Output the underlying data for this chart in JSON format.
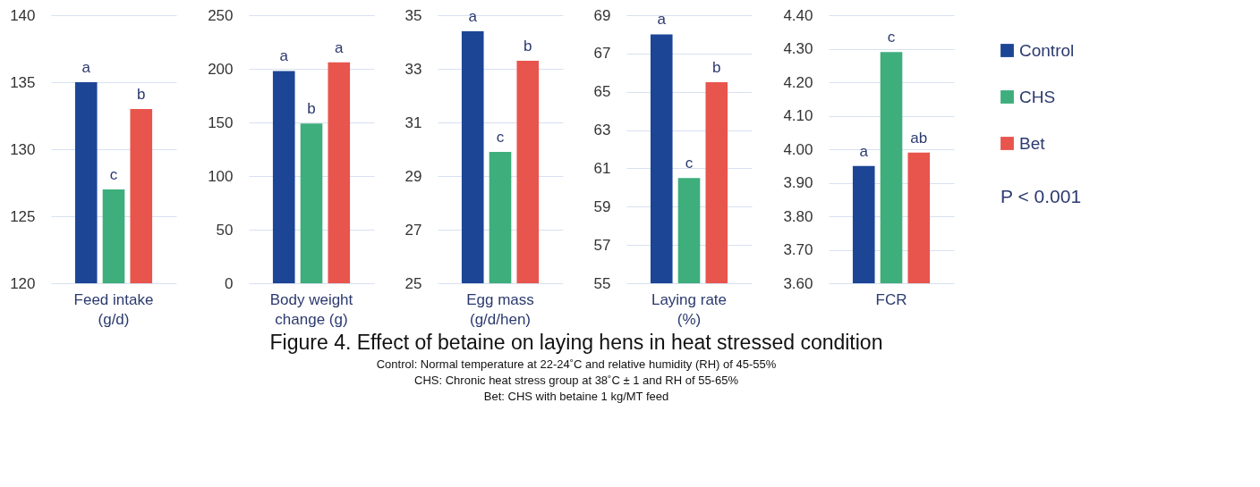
{
  "chart_data": [
    {
      "type": "bar",
      "categories": [
        "Feed intake\n(g/d)"
      ],
      "ylim": [
        120,
        140
      ],
      "yticks": [
        120,
        125,
        130,
        135,
        140
      ],
      "grid": "y",
      "legend": false,
      "series": [
        {
          "color": "#1c4596",
          "values": [
            135
          ],
          "value_labels": [
            "a"
          ]
        },
        {
          "color": "#3dae7c",
          "values": [
            127
          ],
          "value_labels": [
            "c"
          ]
        },
        {
          "color": "#e8554d",
          "values": [
            133
          ],
          "value_labels": [
            "b"
          ]
        }
      ]
    },
    {
      "type": "bar",
      "categories": [
        "Body weight\nchange (g)"
      ],
      "ylim": [
        0,
        250
      ],
      "yticks": [
        0,
        50,
        100,
        150,
        200,
        250
      ],
      "grid": "y",
      "legend": false,
      "series": [
        {
          "color": "#1c4596",
          "values": [
            198
          ],
          "value_labels": [
            "a"
          ]
        },
        {
          "color": "#3dae7c",
          "values": [
            149
          ],
          "value_labels": [
            "b"
          ]
        },
        {
          "color": "#e8554d",
          "values": [
            206
          ],
          "value_labels": [
            "a"
          ]
        }
      ]
    },
    {
      "type": "bar",
      "categories": [
        "Egg mass\n(g/d/hen)"
      ],
      "ylim": [
        25,
        35
      ],
      "yticks": [
        25,
        27,
        29,
        31,
        33,
        35
      ],
      "grid": "y",
      "legend": false,
      "series": [
        {
          "color": "#1c4596",
          "values": [
            34.4
          ],
          "value_labels": [
            "a"
          ]
        },
        {
          "color": "#3dae7c",
          "values": [
            29.9
          ],
          "value_labels": [
            "c"
          ]
        },
        {
          "color": "#e8554d",
          "values": [
            33.3
          ],
          "value_labels": [
            "b"
          ]
        }
      ]
    },
    {
      "type": "bar",
      "categories": [
        "Laying rate\n(%)"
      ],
      "ylim": [
        55,
        69
      ],
      "yticks": [
        55,
        57,
        59,
        61,
        63,
        65,
        67,
        69
      ],
      "grid": "y",
      "legend": false,
      "series": [
        {
          "color": "#1c4596",
          "values": [
            68
          ],
          "value_labels": [
            "a"
          ]
        },
        {
          "color": "#3dae7c",
          "values": [
            60.5
          ],
          "value_labels": [
            "c"
          ]
        },
        {
          "color": "#e8554d",
          "values": [
            65.5
          ],
          "value_labels": [
            "b"
          ]
        }
      ]
    },
    {
      "type": "bar",
      "categories": [
        "FCR"
      ],
      "ylim": [
        3.6,
        4.4
      ],
      "yticks": [
        {
          "value": 3.6,
          "label": "3.60"
        },
        {
          "value": 3.7,
          "label": "3.70"
        },
        {
          "value": 3.8,
          "label": "3.80"
        },
        {
          "value": 3.9,
          "label": "3.90"
        },
        {
          "value": 4.0,
          "label": "4.00"
        },
        {
          "value": 4.1,
          "label": "4.10"
        },
        {
          "value": 4.2,
          "label": "4.20"
        },
        {
          "value": 4.3,
          "label": "4.30"
        },
        {
          "value": 4.4,
          "label": "4.40"
        }
      ],
      "grid": "y",
      "legend": "right",
      "annotations": [
        "P < 0.001"
      ],
      "series": [
        {
          "name": "Control",
          "color": "#1c4596",
          "values": [
            3.95
          ],
          "value_labels": [
            "a"
          ]
        },
        {
          "name": "CHS",
          "color": "#3dae7c",
          "values": [
            4.29
          ],
          "value_labels": [
            "c"
          ]
        },
        {
          "name": "Bet",
          "color": "#e8554d",
          "values": [
            3.99
          ],
          "value_labels": [
            "ab"
          ]
        }
      ]
    },
    {
      "type": "other",
      "title": "Figure 4. Effect of betaine on laying hens in heat stressed condition",
      "annotations": [
        "Control: Normal temperature at 22-24˚C and relative humidity (RH) of 45-55%",
        "CHS: Chronic heat stress group at 38˚C ± 1 and RH of 55-65%",
        "Bet: CHS with betaine 1 kg/MT feed"
      ]
    }
  ]
}
